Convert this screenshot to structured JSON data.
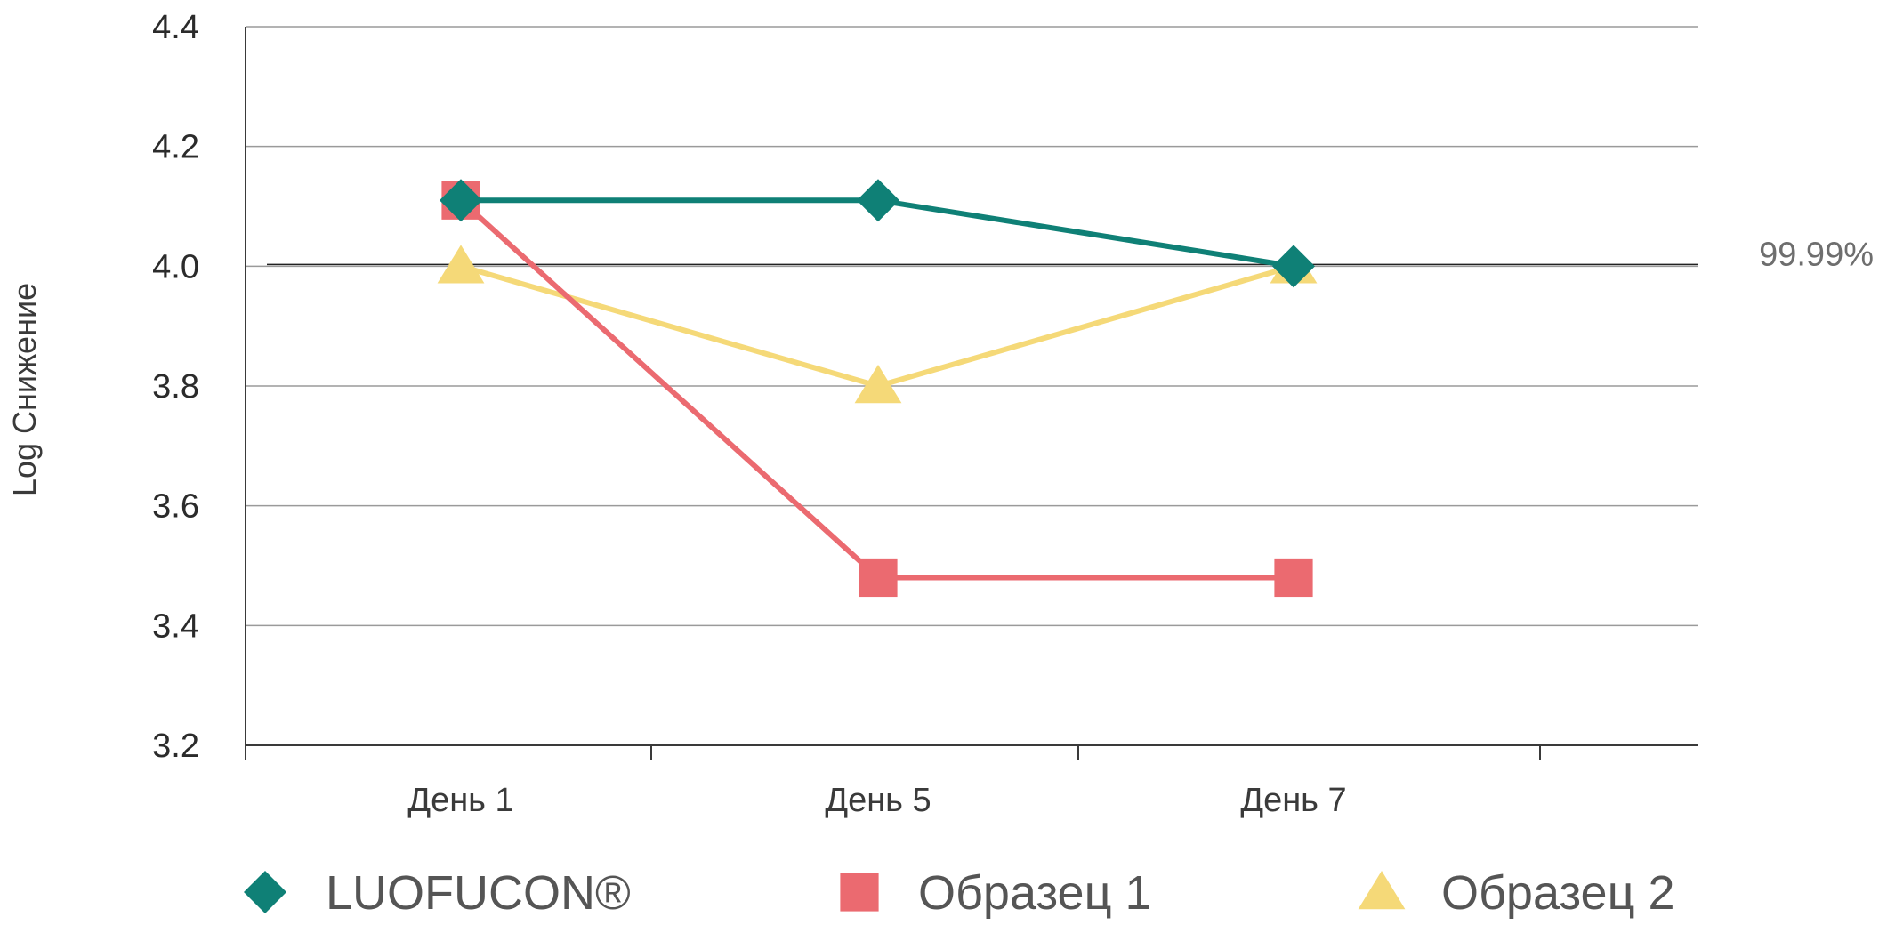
{
  "chart_data": {
    "type": "line",
    "ylabel": "Log Снижение",
    "ylim": [
      3.2,
      4.4
    ],
    "yticks": [
      "4.4",
      "4.2",
      "4.0",
      "3.8",
      "3.6",
      "3.4",
      "3.2"
    ],
    "categories": [
      "День 1",
      "День 5",
      "День 7"
    ],
    "grid": "horizontal",
    "legend_position": "bottom",
    "reference_line": {
      "value": 4.0,
      "label": "99.99%"
    },
    "series": [
      {
        "name": "LUOFUCON®",
        "values": [
          4.11,
          4.11,
          4.0
        ],
        "color": "#0f8076",
        "marker": "diamond"
      },
      {
        "name": "Образец 1",
        "values": [
          4.11,
          3.48,
          3.48
        ],
        "color": "#eb6a70",
        "marker": "square"
      },
      {
        "name": "Образец 2",
        "values": [
          4.0,
          3.8,
          4.0
        ],
        "color": "#f5d978",
        "marker": "triangle"
      }
    ]
  }
}
